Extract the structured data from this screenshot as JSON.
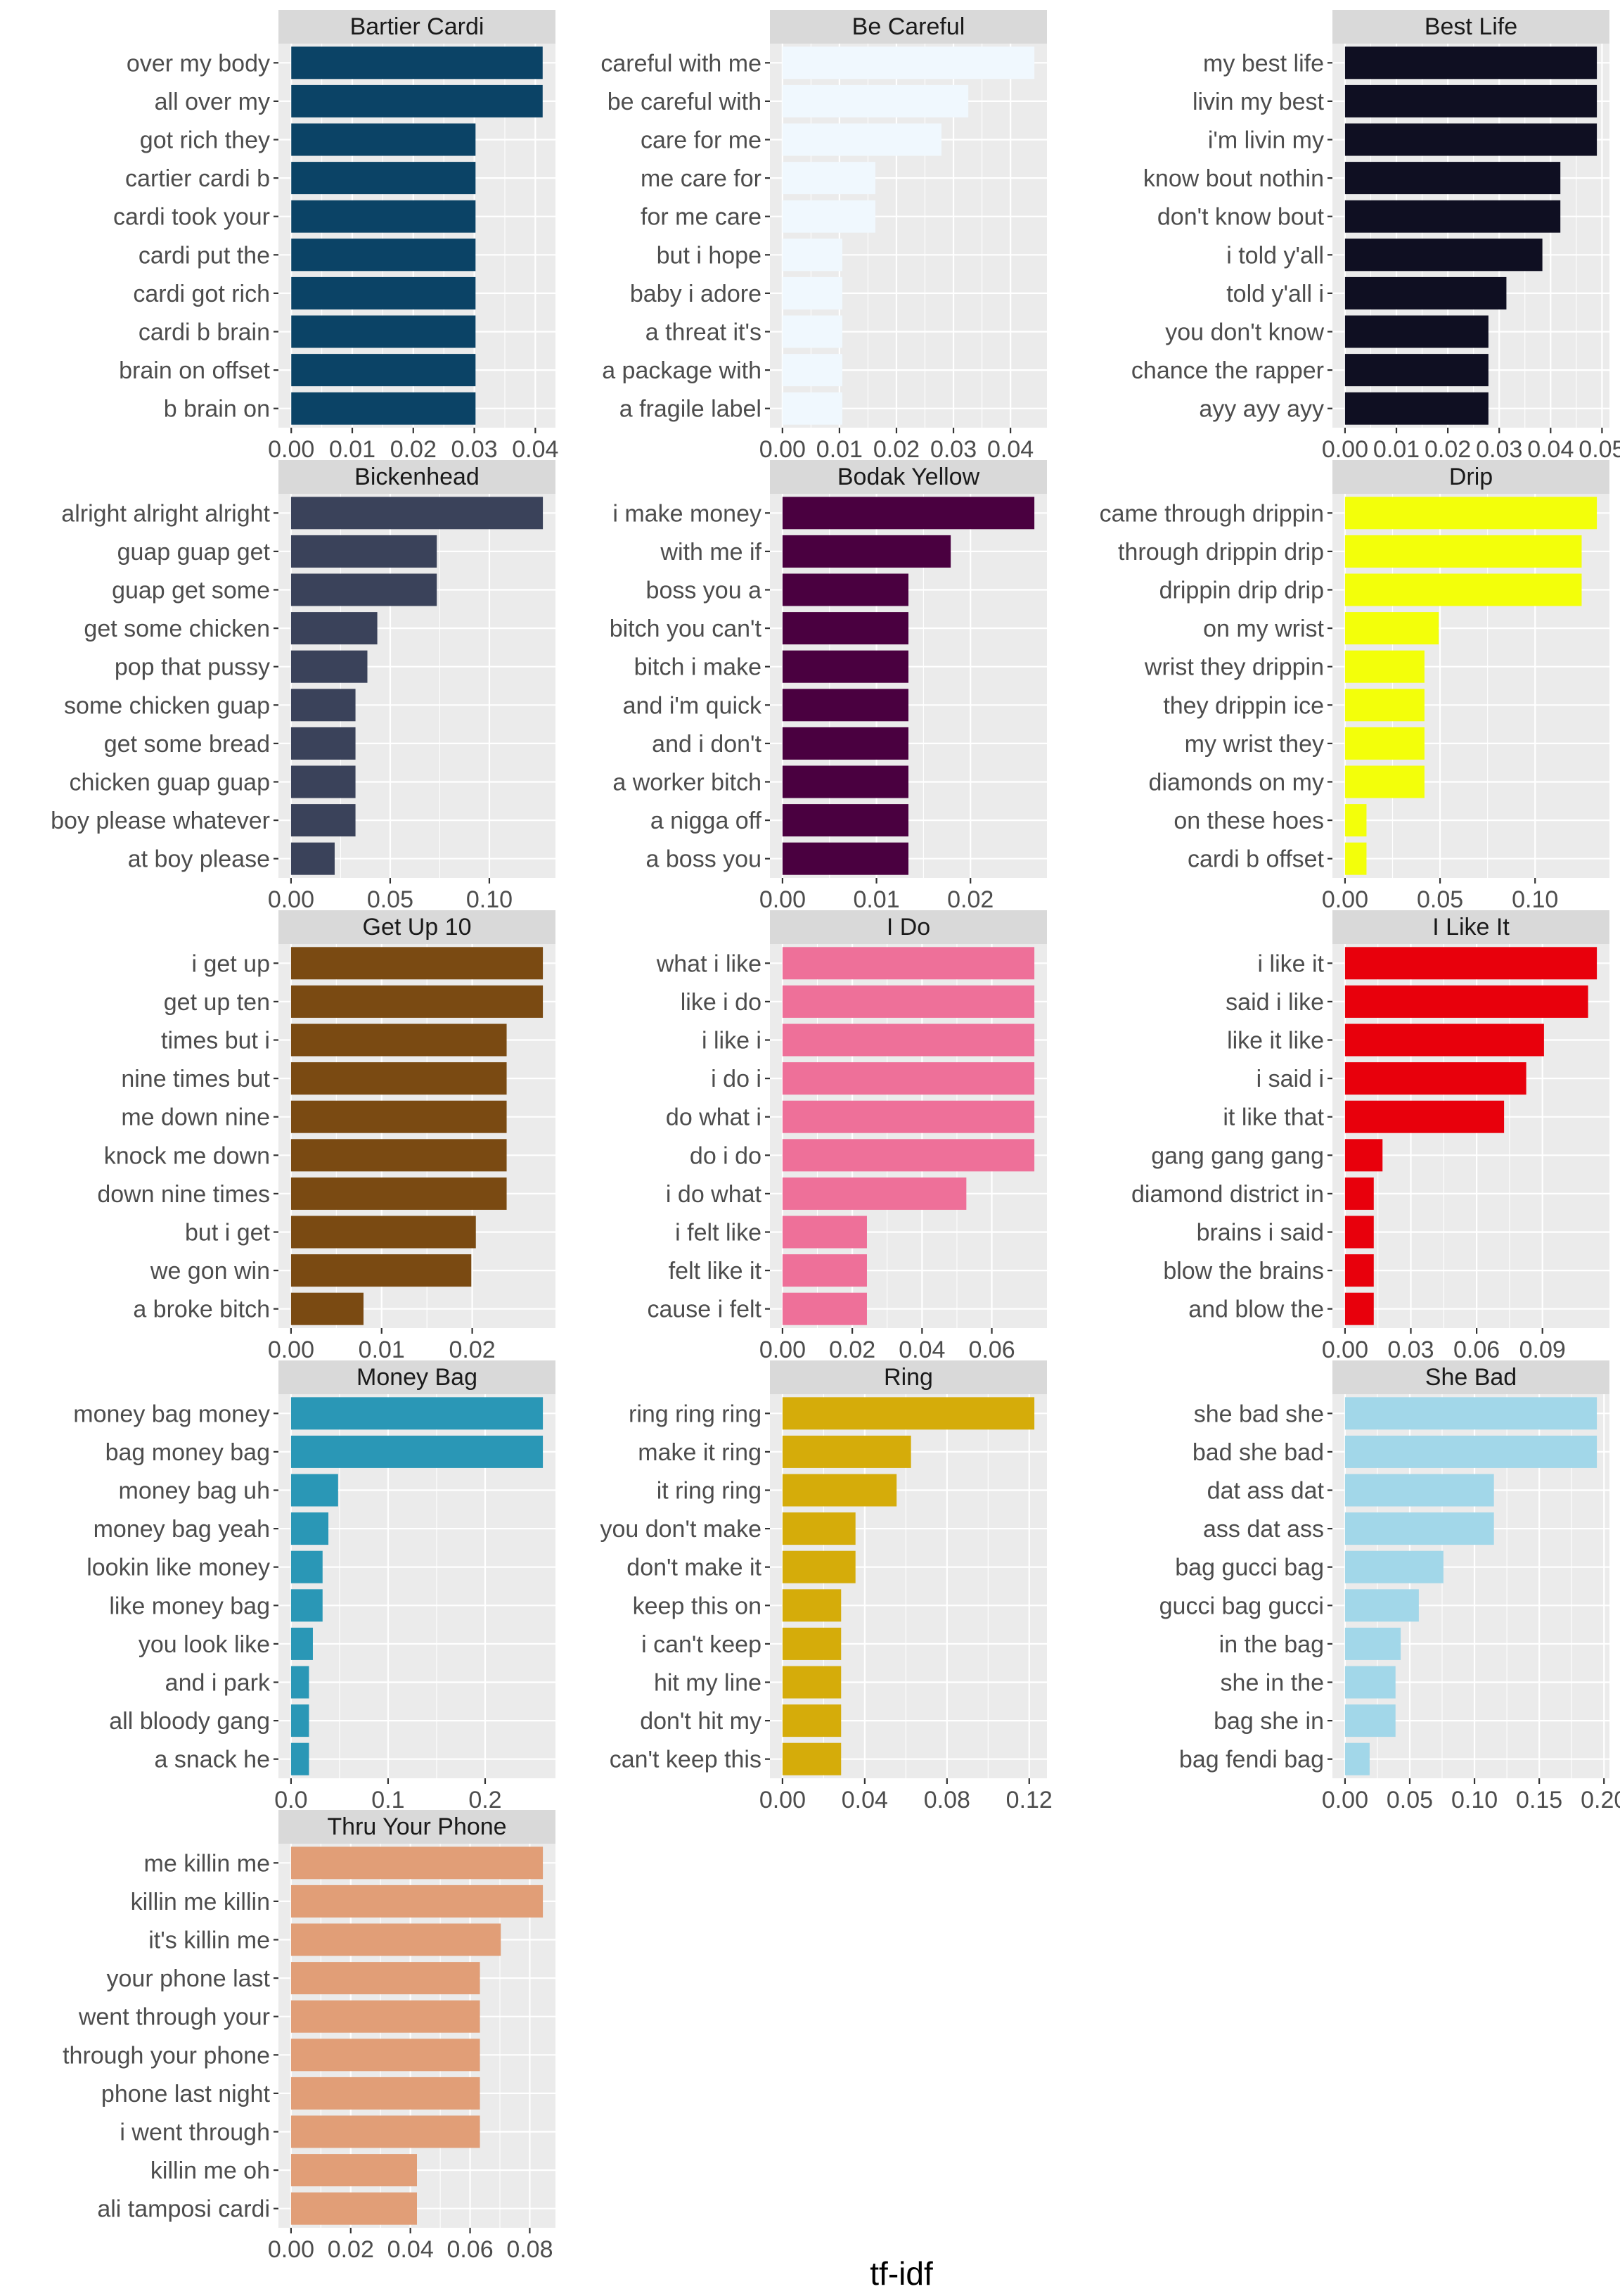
{
  "x_axis_label": "tf-idf",
  "chart_data": [
    {
      "type": "bar",
      "orientation": "horizontal",
      "title": "Bartier Cardi",
      "color": "#0b4366",
      "categories": [
        "over my body",
        "all over my",
        "got rich they",
        "cartier cardi b",
        "cardi took your",
        "cardi put the",
        "cardi got rich",
        "cardi b brain",
        "brain on offset",
        "b brain on"
      ],
      "values": [
        0.0412,
        0.0412,
        0.0302,
        0.0302,
        0.0302,
        0.0302,
        0.0302,
        0.0302,
        0.0302,
        0.0302
      ],
      "xlim": [
        -0.0021,
        0.0433
      ],
      "xticks": [
        0,
        0.01,
        0.02,
        0.03,
        0.04
      ],
      "xtick_labels": [
        "0.00",
        "0.01",
        "0.02",
        "0.03",
        "0.04"
      ]
    },
    {
      "type": "bar",
      "orientation": "horizontal",
      "title": "Be Careful",
      "color": "#f0f8fe",
      "categories": [
        "careful with me",
        "be careful with",
        "care for me",
        "me care for",
        "for me care",
        "but i hope",
        "baby i adore",
        "a threat it's",
        "a package with",
        "a fragile label"
      ],
      "values": [
        0.0442,
        0.0326,
        0.0279,
        0.0163,
        0.0163,
        0.0105,
        0.0105,
        0.0105,
        0.0105,
        0.0105
      ],
      "xlim": [
        -0.0022,
        0.0464
      ],
      "xticks": [
        0,
        0.01,
        0.02,
        0.03,
        0.04
      ],
      "xtick_labels": [
        "0.00",
        "0.01",
        "0.02",
        "0.03",
        "0.04"
      ]
    },
    {
      "type": "bar",
      "orientation": "horizontal",
      "title": "Best Life",
      "color": "#0f0f22",
      "categories": [
        "my best life",
        "livin my best",
        "i'm livin my",
        "know bout nothin",
        "don't know bout",
        "i told y'all",
        "told y'all i",
        "you don't know",
        "chance the rapper",
        "ayy ayy ayy"
      ],
      "values": [
        0.049,
        0.049,
        0.049,
        0.0419,
        0.0419,
        0.0384,
        0.0314,
        0.0279,
        0.0279,
        0.0279
      ],
      "xlim": [
        -0.00245,
        0.05145
      ],
      "xticks": [
        0,
        0.01,
        0.02,
        0.03,
        0.04,
        0.05
      ],
      "xtick_labels": [
        "0.00",
        "0.01",
        "0.02",
        "0.03",
        "0.04",
        "0.05"
      ]
    },
    {
      "type": "bar",
      "orientation": "horizontal",
      "title": "Bickenhead",
      "color": "#3a425a",
      "categories": [
        "alright alright alright",
        "guap guap get",
        "guap get some",
        "get some chicken",
        "pop that pussy",
        "some chicken guap",
        "get some bread",
        "chicken guap guap",
        "boy please whatever",
        "at boy please"
      ],
      "values": [
        0.127,
        0.0735,
        0.0735,
        0.0435,
        0.0385,
        0.0325,
        0.0325,
        0.0325,
        0.0325,
        0.022
      ],
      "xlim": [
        -0.00635,
        0.13335
      ],
      "xticks": [
        0,
        0.05,
        0.1
      ],
      "xtick_labels": [
        "0.00",
        "0.05",
        "0.10"
      ]
    },
    {
      "type": "bar",
      "orientation": "horizontal",
      "title": "Bodak Yellow",
      "color": "#4a0040",
      "categories": [
        "i make money",
        "with me if",
        "boss you a",
        "bitch you can't",
        "bitch i make",
        "and i'm quick",
        "and i don't",
        "a worker bitch",
        "a nigga off",
        "a boss you"
      ],
      "values": [
        0.0268,
        0.0179,
        0.0134,
        0.0134,
        0.0134,
        0.0134,
        0.0134,
        0.0134,
        0.0134,
        0.0134
      ],
      "xlim": [
        -0.00134,
        0.02814
      ],
      "xticks": [
        0,
        0.01,
        0.02
      ],
      "xtick_labels": [
        "0.00",
        "0.01",
        "0.02"
      ]
    },
    {
      "type": "bar",
      "orientation": "horizontal",
      "title": "Drip",
      "color": "#f3ff0a",
      "categories": [
        "came through drippin",
        "through drippin drip",
        "drippin drip drip",
        "on my wrist",
        "wrist they drippin",
        "they drippin ice",
        "my wrist they",
        "diamonds on my",
        "on these hoes",
        "cardi b offset"
      ],
      "values": [
        0.1325,
        0.1245,
        0.1245,
        0.0493,
        0.0418,
        0.0418,
        0.0418,
        0.0418,
        0.0113,
        0.0113
      ],
      "xlim": [
        -0.006625,
        0.139125
      ],
      "xticks": [
        0,
        0.05,
        0.1
      ],
      "xtick_labels": [
        "0.00",
        "0.05",
        "0.10"
      ]
    },
    {
      "type": "bar",
      "orientation": "horizontal",
      "title": "Get Up 10",
      "color": "#7a4a12",
      "categories": [
        "i get up",
        "get up ten",
        "times but i",
        "nine times but",
        "me down nine",
        "knock me down",
        "down nine times",
        "but i get",
        "we gon win",
        "a broke bitch"
      ],
      "values": [
        0.0278,
        0.0278,
        0.0238,
        0.0238,
        0.0238,
        0.0238,
        0.0238,
        0.0204,
        0.0199,
        0.008
      ],
      "xlim": [
        -0.00139,
        0.02919
      ],
      "xticks": [
        0,
        0.01,
        0.02
      ],
      "xtick_labels": [
        "0.00",
        "0.01",
        "0.02"
      ]
    },
    {
      "type": "bar",
      "orientation": "horizontal",
      "title": "I Do",
      "color": "#ee7099",
      "categories": [
        "what i like",
        "like i do",
        "i like i",
        "i do i",
        "do what i",
        "do i do",
        "i do what",
        "i felt like",
        "felt like it",
        "cause i felt"
      ],
      "values": [
        0.0722,
        0.0722,
        0.0722,
        0.0722,
        0.0722,
        0.0722,
        0.0527,
        0.0242,
        0.0242,
        0.0242
      ],
      "xlim": [
        -0.00361,
        0.07581
      ],
      "xticks": [
        0,
        0.02,
        0.04,
        0.06
      ],
      "xtick_labels": [
        "0.00",
        "0.02",
        "0.04",
        "0.06"
      ]
    },
    {
      "type": "bar",
      "orientation": "horizontal",
      "title": "I Like It",
      "color": "#e8000c",
      "categories": [
        "i like it",
        "said i like",
        "like it like",
        "i said i",
        "it like that",
        "gang gang gang",
        "diamond district in",
        "brains i said",
        "blow the brains",
        "and blow the"
      ],
      "values": [
        0.1148,
        0.1108,
        0.0907,
        0.0826,
        0.0725,
        0.0171,
        0.0131,
        0.0131,
        0.0131,
        0.0131
      ],
      "xlim": [
        -0.00574,
        0.12054
      ],
      "xticks": [
        0,
        0.03,
        0.06,
        0.09
      ],
      "xtick_labels": [
        "0.00",
        "0.03",
        "0.06",
        "0.09"
      ]
    },
    {
      "type": "bar",
      "orientation": "horizontal",
      "title": "Money Bag",
      "color": "#2a97b6",
      "categories": [
        "money bag money",
        "bag money bag",
        "money bag uh",
        "money bag yeah",
        "lookin like money",
        "like money bag",
        "you look like",
        "and i park",
        "all bloody gang",
        "a snack he"
      ],
      "values": [
        0.2595,
        0.2595,
        0.0485,
        0.0385,
        0.0325,
        0.0325,
        0.0225,
        0.0185,
        0.0185,
        0.0185
      ],
      "xlim": [
        -0.012975,
        0.272475
      ],
      "xticks": [
        0,
        0.1,
        0.2
      ],
      "xtick_labels": [
        "0.0",
        "0.1",
        "0.2"
      ]
    },
    {
      "type": "bar",
      "orientation": "horizontal",
      "title": "Ring",
      "color": "#d5ac0a",
      "categories": [
        "ring ring ring",
        "make it ring",
        "it ring ring",
        "you don't make",
        "don't make it",
        "keep this on",
        "i can't keep",
        "hit my line",
        "don't hit my",
        "can't keep this"
      ],
      "values": [
        0.1225,
        0.0625,
        0.0555,
        0.0355,
        0.0355,
        0.0285,
        0.0285,
        0.0285,
        0.0285,
        0.0285
      ],
      "xlim": [
        -0.006125,
        0.128625
      ],
      "xticks": [
        0,
        0.04,
        0.08,
        0.12
      ],
      "xtick_labels": [
        "0.00",
        "0.04",
        "0.08",
        "0.12"
      ]
    },
    {
      "type": "bar",
      "orientation": "horizontal",
      "title": "She Bad",
      "color": "#a2d7e9",
      "categories": [
        "she bad she",
        "bad she bad",
        "dat ass dat",
        "ass dat ass",
        "bag gucci bag",
        "gucci bag gucci",
        "in the bag",
        "she in the",
        "bag she in",
        "bag fendi bag"
      ],
      "values": [
        0.1945,
        0.1945,
        0.115,
        0.115,
        0.076,
        0.057,
        0.043,
        0.039,
        0.039,
        0.019
      ],
      "xlim": [
        -0.009725,
        0.204225
      ],
      "xticks": [
        0,
        0.05,
        0.1,
        0.15,
        0.2
      ],
      "xtick_labels": [
        "0.00",
        "0.05",
        "0.10",
        "0.15",
        "0.20"
      ]
    },
    {
      "type": "bar",
      "orientation": "horizontal",
      "title": "Thru Your Phone",
      "color": "#e19e77",
      "categories": [
        "me killin me",
        "killin me killin",
        "it's killin me",
        "your phone last",
        "went through your",
        "through your phone",
        "phone last night",
        "i went through",
        "killin me oh",
        "ali tamposi cardi"
      ],
      "values": [
        0.0844,
        0.0844,
        0.0703,
        0.0633,
        0.0633,
        0.0633,
        0.0633,
        0.0633,
        0.0422,
        0.0422
      ],
      "xlim": [
        -0.00422,
        0.08862
      ],
      "xticks": [
        0,
        0.02,
        0.04,
        0.06,
        0.08
      ],
      "xtick_labels": [
        "0.00",
        "0.02",
        "0.04",
        "0.06",
        "0.08"
      ]
    }
  ]
}
